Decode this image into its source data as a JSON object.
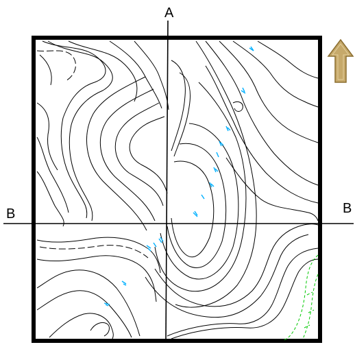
{
  "section_lines": {
    "vertical_label": "A",
    "horizontal_label_left": "B",
    "horizontal_label_right": "B"
  },
  "north_arrow": {
    "icon": "up-arrow-icon",
    "fill_color": "#c6a96a",
    "stroke_color": "#8a6d2f"
  },
  "colors": {
    "frame": "#000000",
    "contour": "#000000",
    "elevation_label": "#00b0ff",
    "highlight_contour": "#00c800"
  }
}
